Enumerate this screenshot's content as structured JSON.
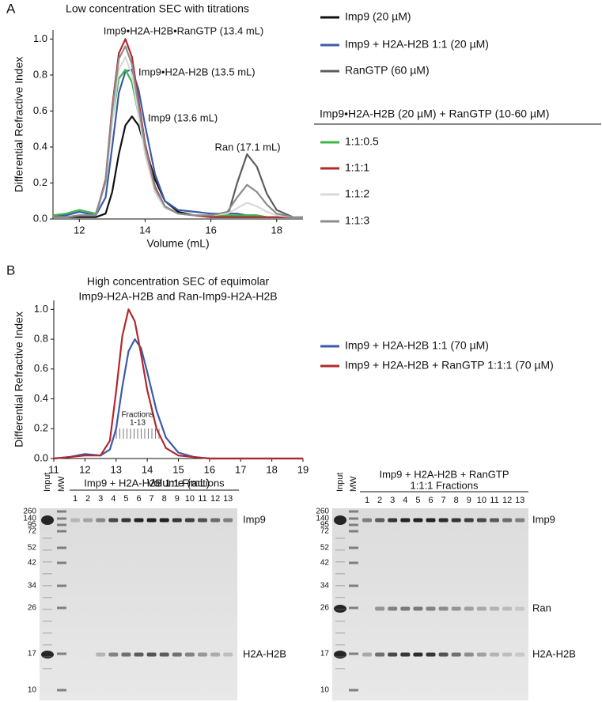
{
  "panel_labels": [
    "A",
    "B"
  ],
  "chart_data": [
    {
      "type": "line",
      "title": "Low concentration SEC with titrations",
      "x_label": "Volume (mL)",
      "y_label": "Differential Refractive Index",
      "xlim": [
        11.2,
        18.8
      ],
      "ylim": [
        0,
        1.05
      ],
      "xticks": [
        12,
        14,
        16,
        18
      ],
      "yticks": [
        {
          "value": 0,
          "label": "0.0"
        },
        0.2,
        0.4,
        0.6,
        0.8,
        {
          "value": 1,
          "label": "1.0"
        }
      ],
      "legend": "right",
      "legend_heading": "Imp9•H2A-H2B (20 µM) + RanGTP (10-60 µM)",
      "x": [
        11.2,
        11.6,
        12,
        12.5,
        12.8,
        13.0,
        13.2,
        13.4,
        13.6,
        13.8,
        14.0,
        14.3,
        14.6,
        15,
        15.5,
        16,
        16.5,
        16.8,
        17.1,
        17.4,
        17.7,
        18,
        18.5,
        18.8
      ],
      "series": [
        {
          "name": "Imp9 (20 µM)",
          "color": "#111111",
          "values": [
            0.01,
            0.01,
            0.01,
            0.01,
            0.03,
            0.15,
            0.36,
            0.52,
            0.57,
            0.52,
            0.4,
            0.22,
            0.1,
            0.04,
            0.02,
            0.01,
            0.01,
            0.01,
            0.01,
            0.01,
            0.01,
            0.01,
            0.01,
            0.01
          ]
        },
        {
          "name": "Imp9 + H2A-H2B 1:1 (20 µM)",
          "color": "#3a5ba8",
          "values": [
            0.02,
            0.02,
            0.04,
            0.02,
            0.12,
            0.4,
            0.7,
            0.82,
            0.83,
            0.72,
            0.52,
            0.25,
            0.1,
            0.05,
            0.04,
            0.03,
            0.03,
            0.03,
            0.02,
            0.02,
            0.01,
            0.01,
            0.01,
            0.01
          ]
        },
        {
          "name": "RanGTP (60 µM)",
          "color": "#5c5c5c",
          "values": [
            null,
            null,
            null,
            null,
            null,
            null,
            null,
            null,
            null,
            null,
            null,
            null,
            null,
            null,
            null,
            null,
            0.01,
            0.2,
            0.36,
            0.29,
            0.14,
            0.05,
            0.01,
            0.01
          ]
        },
        {
          "name": "1:1:0.5",
          "color": "#3cb54a",
          "values": [
            0.02,
            0.03,
            0.05,
            0.03,
            0.2,
            0.55,
            0.78,
            0.83,
            0.76,
            0.58,
            0.38,
            0.17,
            0.07,
            0.03,
            0.02,
            0.02,
            0.02,
            0.02,
            0.02,
            0.02,
            0.01,
            0.01,
            0.01,
            0.01
          ]
        },
        {
          "name": "1:1:1",
          "color": "#b2282e",
          "values": [
            0.01,
            0.01,
            0.02,
            0.02,
            0.22,
            0.62,
            0.92,
            1.0,
            0.9,
            0.66,
            0.42,
            0.18,
            0.07,
            0.03,
            0.02,
            0.01,
            0.01,
            0.01,
            0.01,
            0.01,
            0.01,
            0.01,
            0.01,
            0.01
          ]
        },
        {
          "name": "1:1:2",
          "color": "#d9d9d9",
          "values": [
            0.01,
            0.01,
            0.02,
            0.02,
            0.2,
            0.55,
            0.83,
            0.9,
            0.8,
            0.58,
            0.36,
            0.15,
            0.06,
            0.03,
            0.02,
            0.02,
            0.03,
            0.06,
            0.09,
            0.07,
            0.04,
            0.02,
            0.01,
            0.01
          ]
        },
        {
          "name": "1:1:3",
          "color": "#8c8c8c",
          "values": [
            0.01,
            0.01,
            0.02,
            0.02,
            0.21,
            0.6,
            0.89,
            0.96,
            0.86,
            0.63,
            0.4,
            0.17,
            0.07,
            0.03,
            0.02,
            0.02,
            0.04,
            0.12,
            0.19,
            0.15,
            0.08,
            0.03,
            0.01,
            0.01
          ]
        }
      ],
      "annotations": [
        {
          "text": "Imp9•H2A-H2B•RanGTP (13.4 mL)",
          "color": "#b2282e"
        },
        {
          "text": "Imp9•H2A-H2B (13.5 mL)",
          "color": "#3a5ba8"
        },
        {
          "text": "Imp9 (13.6 mL)",
          "color": "#111111"
        },
        {
          "text": "Ran (17.1 mL)",
          "color": "#777777"
        }
      ]
    },
    {
      "type": "line",
      "title_lines": [
        "High concentration SEC of equimolar",
        "Imp9-H2A-H2B and Ran-Imp9-H2A-H2B"
      ],
      "x_label": "Volume (mL)",
      "y_label": "Differential Refractive Index",
      "xlim": [
        11,
        19
      ],
      "ylim": [
        0,
        1.06
      ],
      "xticks": [
        11,
        12,
        13,
        14,
        15,
        16,
        17,
        18,
        19
      ],
      "yticks": [
        {
          "value": 0,
          "label": "0.0"
        },
        0.2,
        0.4,
        0.6,
        0.8,
        {
          "value": 1,
          "label": "1.0"
        }
      ],
      "legend": "right",
      "x": [
        11,
        11.5,
        12,
        12.5,
        12.8,
        13.0,
        13.2,
        13.4,
        13.6,
        13.8,
        14.0,
        14.3,
        14.6,
        15,
        15.5,
        16,
        17,
        18,
        19
      ],
      "series": [
        {
          "name": "Imp9 + H2A-H2B 1:1 (70 µM)",
          "color": "#3a5ba8",
          "values": [
            0,
            0.01,
            0.03,
            0.02,
            0.06,
            0.2,
            0.48,
            0.72,
            0.8,
            0.74,
            0.58,
            0.32,
            0.14,
            0.04,
            0.01,
            0,
            0,
            0,
            0
          ]
        },
        {
          "name": "Imp9 + H2A-H2B + RanGTP 1:1:1 (70 µM)",
          "color": "#b2282e",
          "values": [
            0,
            0.01,
            0.02,
            0.02,
            0.12,
            0.45,
            0.82,
            1.0,
            0.92,
            0.7,
            0.46,
            0.2,
            0.07,
            0.02,
            0.01,
            0,
            0,
            0,
            0
          ]
        }
      ],
      "annotations": [
        {
          "text": "Fractions",
          "color": "#888888"
        },
        {
          "text": "1-13",
          "color": "#888888"
        }
      ]
    }
  ],
  "gels": [
    {
      "title_lines": [
        "Imp9 + H2A-H2B 1:1 Fractions"
      ],
      "lanes": [
        "Input",
        "MW",
        "1",
        "2",
        "3",
        "4",
        "5",
        "6",
        "7",
        "8",
        "9",
        "10",
        "11",
        "12",
        "13"
      ],
      "mw_markers": [
        260,
        140,
        95,
        72,
        52,
        42,
        34,
        26,
        17,
        10
      ],
      "band_labels": [
        "Imp9",
        "H2A-H2B"
      ]
    },
    {
      "title_lines": [
        "Imp9 + H2A-H2B + RanGTP",
        "1:1:1 Fractions"
      ],
      "lanes": [
        "Input",
        "MW",
        "1",
        "2",
        "3",
        "4",
        "5",
        "6",
        "7",
        "8",
        "9",
        "10",
        "11",
        "12",
        "13"
      ],
      "mw_markers": [
        260,
        140,
        95,
        72,
        52,
        42,
        34,
        26,
        17,
        10
      ],
      "band_labels": [
        "Imp9",
        "Ran",
        "H2A-H2B"
      ]
    }
  ]
}
